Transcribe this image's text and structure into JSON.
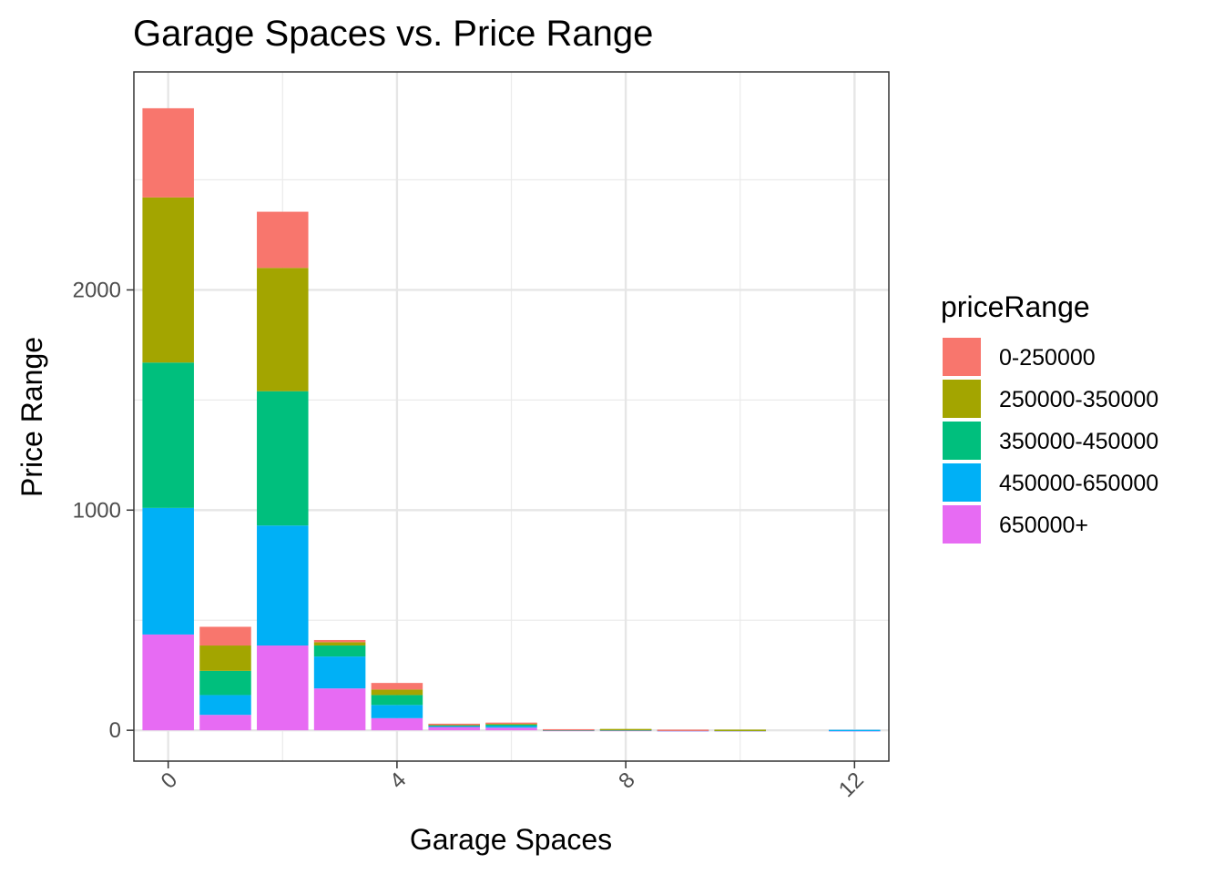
{
  "chart_data": {
    "type": "bar",
    "stacked": true,
    "title": "Garage Spaces vs. Price Range",
    "xlabel": "Garage Spaces",
    "ylabel": "Price Range",
    "xlim": [
      -0.6,
      12.6
    ],
    "ylim": [
      -140,
      2990
    ],
    "x_ticks": [
      0,
      4,
      8,
      12
    ],
    "y_ticks": [
      0,
      1000,
      2000
    ],
    "y_minor": [
      500,
      1500,
      2500
    ],
    "x_minor": [
      2,
      6,
      10
    ],
    "grid": true,
    "legend": {
      "title": "priceRange",
      "position": "right"
    },
    "x": [
      0,
      1,
      2,
      3,
      4,
      5,
      6,
      7,
      8,
      9,
      10,
      11,
      12
    ],
    "series": [
      {
        "name": "650000+",
        "color": "#E76BF3",
        "values": [
          435,
          70,
          385,
          190,
          55,
          15,
          12,
          2,
          2,
          1,
          1,
          0,
          1
        ]
      },
      {
        "name": "450000-650000",
        "color": "#00B0F6",
        "values": [
          575,
          90,
          545,
          145,
          60,
          6,
          8,
          1,
          2,
          1,
          0,
          0,
          1
        ]
      },
      {
        "name": "350000-450000",
        "color": "#00BF7D",
        "values": [
          660,
          110,
          610,
          50,
          45,
          4,
          6,
          1,
          1,
          0,
          1,
          0,
          0
        ]
      },
      {
        "name": "250000-350000",
        "color": "#A3A500",
        "values": [
          750,
          115,
          560,
          15,
          25,
          3,
          6,
          0,
          1,
          0,
          1,
          0,
          0
        ]
      },
      {
        "name": "0-250000",
        "color": "#F8766D",
        "values": [
          405,
          85,
          255,
          10,
          30,
          2,
          3,
          1,
          0,
          1,
          0,
          0,
          0
        ]
      }
    ]
  }
}
